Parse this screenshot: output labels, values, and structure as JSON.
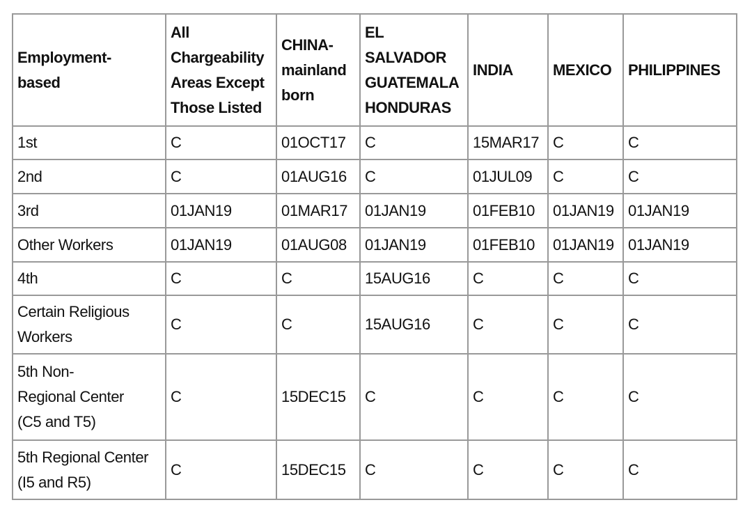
{
  "table": {
    "headers": [
      "Employment-\nbased",
      "All\nChargeability\nAreas Except\nThose Listed",
      "CHINA-\nmainland\nborn",
      "EL\nSALVADOR\nGUATEMALA\nHONDURAS",
      "INDIA",
      "MEXICO",
      "PHILIPPINES"
    ],
    "rows": [
      [
        "1st",
        "C",
        "01OCT17",
        "C",
        "15MAR17",
        "C",
        "C"
      ],
      [
        "2nd",
        "C",
        "01AUG16",
        "C",
        "01JUL09",
        "C",
        "C"
      ],
      [
        "3rd",
        "01JAN19",
        "01MAR17",
        "01JAN19",
        "01FEB10",
        "01JAN19",
        "01JAN19"
      ],
      [
        "Other Workers",
        "01JAN19",
        "01AUG08",
        "01JAN19",
        "01FEB10",
        "01JAN19",
        "01JAN19"
      ],
      [
        "4th",
        "C",
        "C",
        "15AUG16",
        "C",
        "C",
        "C"
      ],
      [
        "Certain Religious\nWorkers",
        "C",
        "C",
        "15AUG16",
        "C",
        "C",
        "C"
      ],
      [
        "5th Non-\nRegional Center\n(C5 and T5)",
        "C",
        "15DEC15",
        "C",
        "C",
        "C",
        "C"
      ],
      [
        "5th Regional Center\n(I5 and R5)",
        "C",
        "15DEC15",
        "C",
        "C",
        "C",
        "C"
      ]
    ]
  }
}
